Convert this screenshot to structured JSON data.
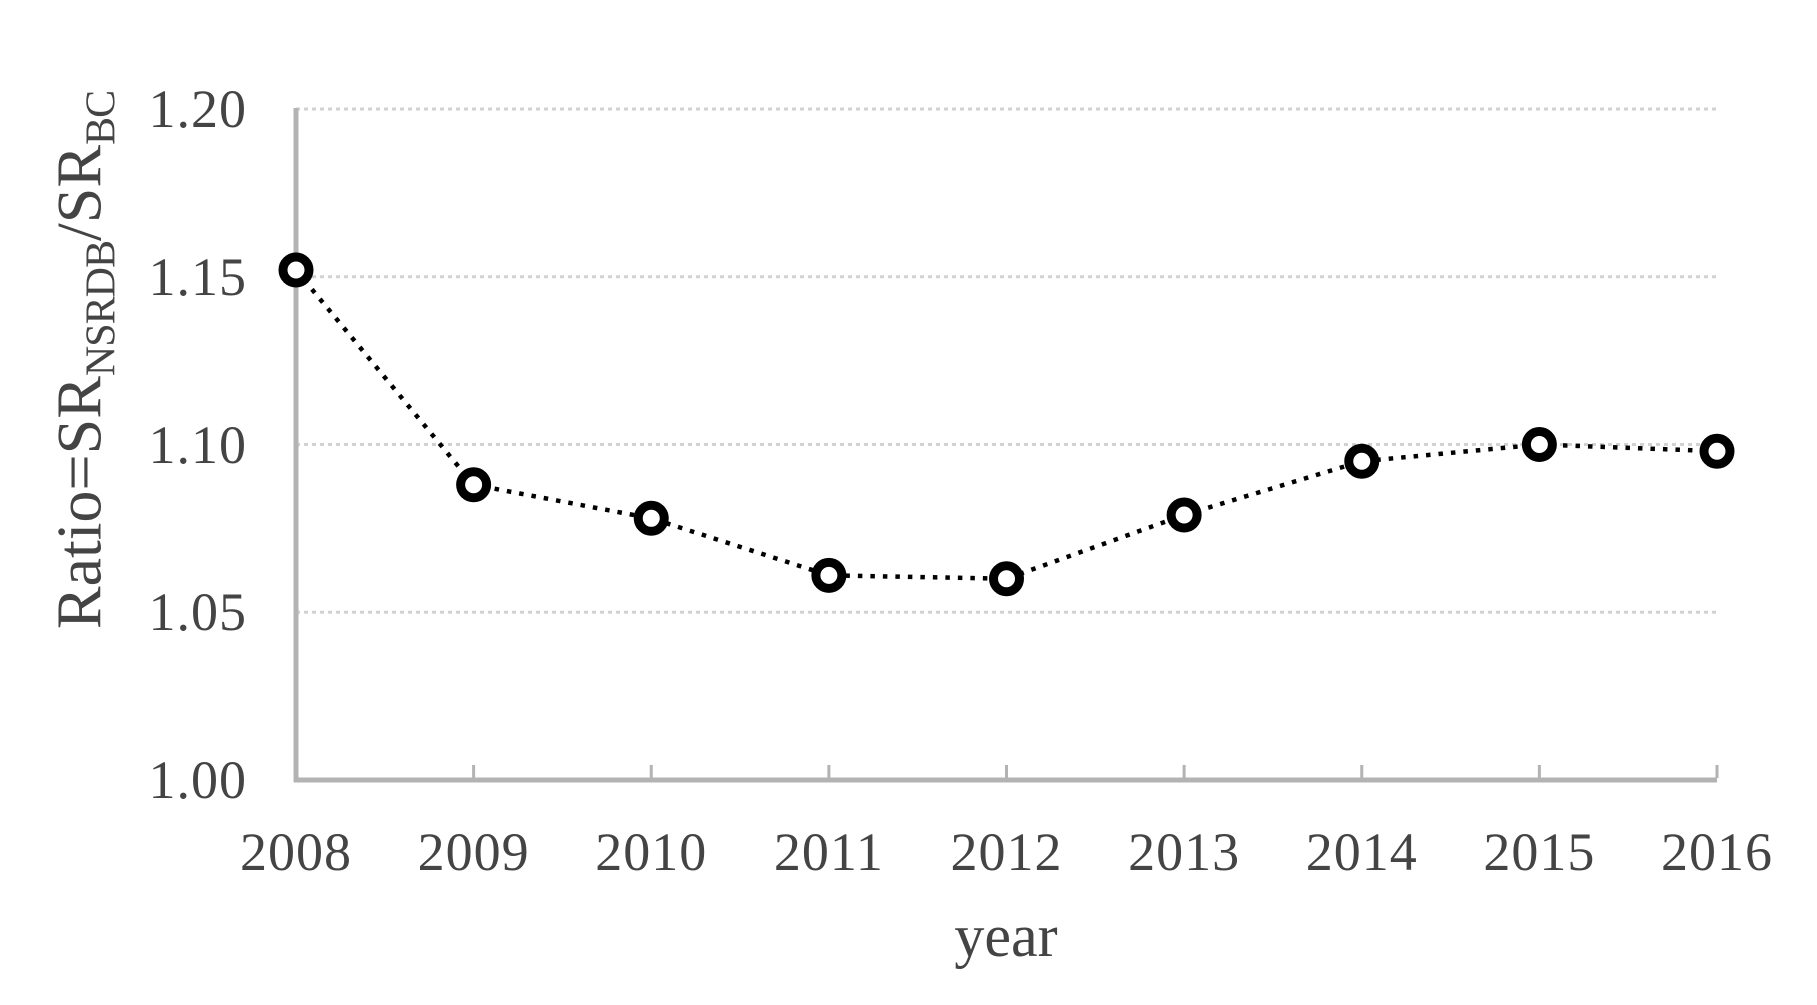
{
  "figure": {
    "background_color": "#ffffff",
    "text_color": "#444444",
    "title": ""
  },
  "chart_data": {
    "type": "line",
    "title": "",
    "xlabel": "year",
    "ylabel": "Ratio=SR_NSRDB/SR_BC",
    "ylabel_parts": {
      "main1": "Ratio=SR",
      "sub1": "NSRDB",
      "main2": "/SR",
      "sub2": "BC"
    },
    "categories": [
      "2008",
      "2009",
      "2010",
      "2011",
      "2012",
      "2013",
      "2014",
      "2015",
      "2016"
    ],
    "series": [
      {
        "name": "Ratio SR_NSRDB/SR_BC",
        "values": [
          1.152,
          1.088,
          1.078,
          1.061,
          1.06,
          1.079,
          1.095,
          1.1,
          1.098
        ]
      }
    ],
    "ylim": [
      1.0,
      1.2
    ],
    "y_ticks": [
      {
        "label": "1.20",
        "value": 1.2
      },
      {
        "label": "1.15",
        "value": 1.15
      },
      {
        "label": "1.10",
        "value": 1.1
      },
      {
        "label": "1.05",
        "value": 1.05
      },
      {
        "label": "1.00",
        "value": 1.0
      }
    ],
    "grid": "horizontal",
    "legend_position": "none",
    "line_style": "dotted",
    "marker_style": "open-circle",
    "colors": {
      "line": "#000000",
      "marker_stroke": "#000000",
      "marker_fill": "#ffffff",
      "gridline": "#d2d2d2",
      "axis_line": "#b3b3b3",
      "tick_text": "#444444"
    }
  }
}
